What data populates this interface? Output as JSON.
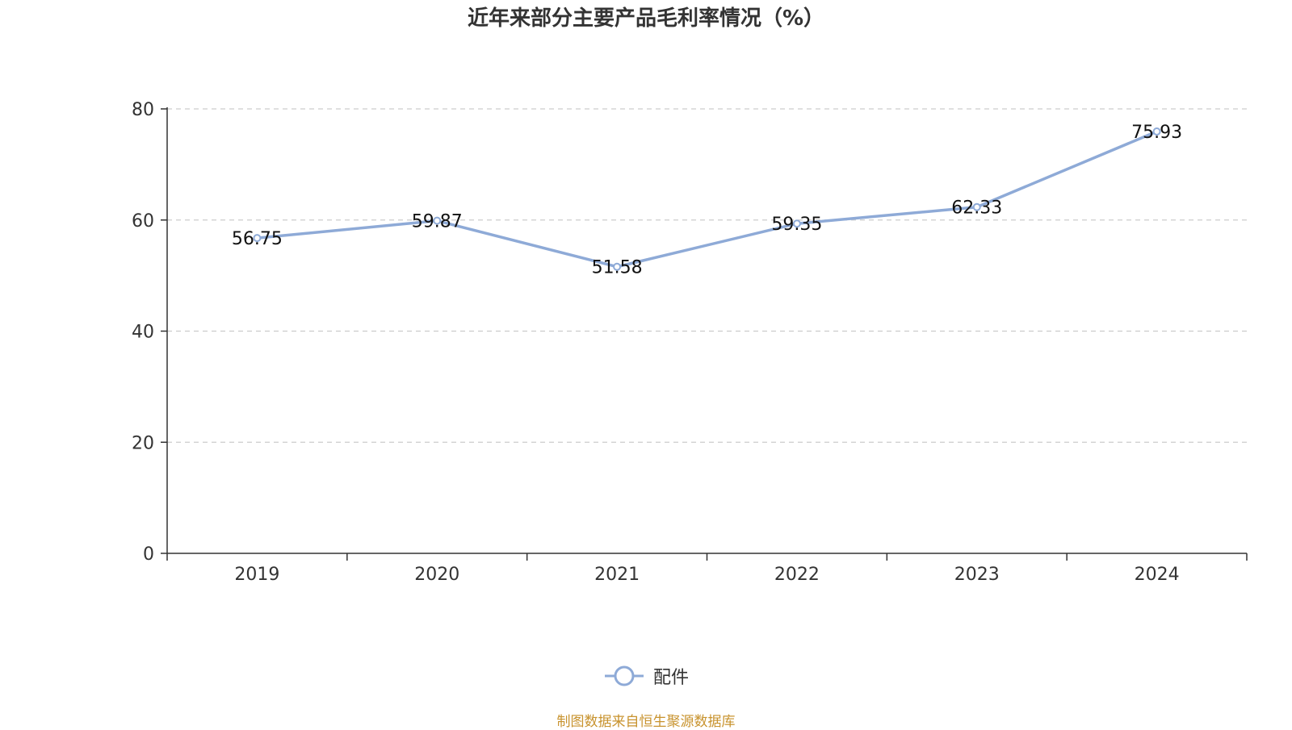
{
  "chart_data": {
    "type": "line",
    "title": "近年来部分主要产品毛利率情况（%）",
    "categories": [
      "2019",
      "2020",
      "2021",
      "2022",
      "2023",
      "2024"
    ],
    "series": [
      {
        "name": "配件",
        "values": [
          56.75,
          59.87,
          51.58,
          59.35,
          62.33,
          75.93
        ]
      }
    ],
    "ylim": [
      0,
      80
    ],
    "yticks": [
      0,
      20,
      40,
      60,
      80
    ],
    "grid": true,
    "legend_position": "bottom",
    "colors": {
      "series": "#8eaad7",
      "axis": "#333333",
      "grid": "#cccccc",
      "text": "#333333"
    }
  },
  "source_note": "制图数据来自恒生聚源数据库"
}
